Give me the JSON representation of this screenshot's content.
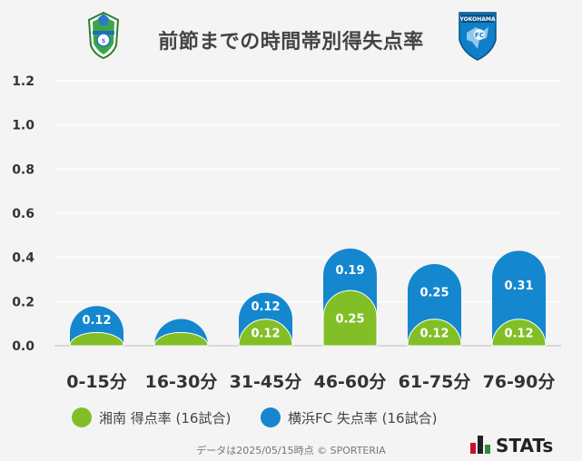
{
  "header": {
    "title": "前節までの時間帯別得失点率"
  },
  "logos": {
    "home_name": "湘南",
    "away_text": "YOKOHAMA",
    "stats_text": "STATs"
  },
  "colors": {
    "home": "#82bf26",
    "away": "#1487cf",
    "grid": "#ffffff",
    "axis": "#cfcfcf"
  },
  "chart_data": {
    "type": "bar",
    "categories": [
      "0-15分",
      "16-30分",
      "31-45分",
      "46-60分",
      "61-75分",
      "76-90分"
    ],
    "series": [
      {
        "name": "湘南 得点率 (16試合)",
        "values": [
          0.06,
          0.06,
          0.12,
          0.25,
          0.12,
          0.12
        ],
        "labels": [
          "",
          "",
          "0.12",
          "0.25",
          "0.12",
          "0.12"
        ]
      },
      {
        "name": "横浜FC 失点率 (16試合)",
        "values": [
          0.12,
          0.06,
          0.12,
          0.19,
          0.25,
          0.31
        ],
        "labels": [
          "0.12",
          "",
          "0.12",
          "0.19",
          "0.25",
          "0.31"
        ]
      }
    ],
    "stacked": true,
    "ylim": [
      0,
      1.2
    ],
    "yticks": [
      "0.0",
      "0.2",
      "0.4",
      "0.6",
      "0.8",
      "1.0",
      "1.2"
    ],
    "ytick_values": [
      0,
      0.2,
      0.4,
      0.6,
      0.8,
      1.0,
      1.2
    ],
    "grid": true,
    "legend_position": "bottom"
  },
  "footer": {
    "text": "データは2025/05/15時点 © SPORTERIA"
  }
}
